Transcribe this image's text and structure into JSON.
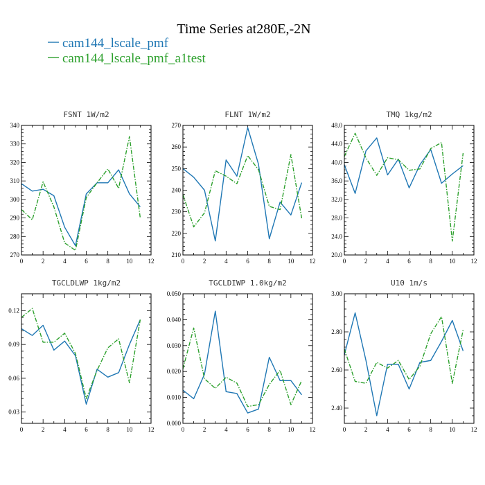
{
  "figure": {
    "title": "Time Series at280E,-2N",
    "legend": [
      {
        "name": "cam144_lscale_pmf",
        "color": "#1f77b4",
        "dash": "solid"
      },
      {
        "name": "cam144_lscale_pmf_a1test",
        "color": "#2ca02c",
        "dash": "dashdot"
      }
    ]
  },
  "chart_data": [
    {
      "type": "line",
      "title": "FSNT  1W/m2",
      "x": [
        0,
        1,
        2,
        3,
        4,
        5,
        6,
        7,
        8,
        9,
        10,
        11
      ],
      "xlim": [
        0,
        12
      ],
      "xticks": [
        0,
        2,
        4,
        6,
        8,
        10,
        12
      ],
      "xtick_labels": [
        "0",
        "2",
        "4",
        "6",
        "8",
        "10",
        "12"
      ],
      "ylim": [
        270,
        340
      ],
      "yticks": [
        270,
        280,
        290,
        300,
        310,
        320,
        330,
        340
      ],
      "ytick_labels": [
        "270",
        "280",
        "290",
        "300",
        "310",
        "320",
        "330",
        "340"
      ],
      "series": [
        {
          "name": "cam144_lscale_pmf",
          "values": [
            308.5,
            304.5,
            305.5,
            302,
            285,
            275,
            303,
            309,
            309,
            316,
            303,
            296
          ]
        },
        {
          "name": "cam144_lscale_pmf_a1test",
          "values": [
            294.5,
            289,
            309.5,
            296,
            276.5,
            272.5,
            301,
            309,
            316.5,
            306,
            334,
            290
          ]
        }
      ]
    },
    {
      "type": "line",
      "title": "FLNT  1W/m2",
      "x": [
        0,
        1,
        2,
        3,
        4,
        5,
        6,
        7,
        8,
        9,
        10,
        11
      ],
      "xlim": [
        0,
        12
      ],
      "xticks": [
        0,
        2,
        4,
        6,
        8,
        10,
        12
      ],
      "xtick_labels": [
        "0",
        "2",
        "4",
        "6",
        "8",
        "10",
        "12"
      ],
      "ylim": [
        210,
        270
      ],
      "yticks": [
        210,
        220,
        230,
        240,
        250,
        260,
        270
      ],
      "ytick_labels": [
        "210",
        "220",
        "230",
        "240",
        "250",
        "260",
        "270"
      ],
      "series": [
        {
          "name": "cam144_lscale_pmf",
          "values": [
            250,
            246,
            240,
            216.5,
            254,
            246.5,
            269,
            252,
            217.5,
            234.5,
            228.5,
            243.5
          ]
        },
        {
          "name": "cam144_lscale_pmf_a1test",
          "values": [
            238,
            223,
            229.5,
            249,
            246.5,
            243,
            256,
            249.5,
            232.5,
            231,
            256.5,
            227
          ]
        }
      ]
    },
    {
      "type": "line",
      "title": "TMQ  1kg/m2",
      "x": [
        0,
        1,
        2,
        3,
        4,
        5,
        6,
        7,
        8,
        9,
        10,
        11
      ],
      "xlim": [
        0,
        12
      ],
      "xticks": [
        0,
        2,
        4,
        6,
        8,
        10,
        12
      ],
      "xtick_labels": [
        "0",
        "2",
        "4",
        "6",
        "8",
        "10",
        "12"
      ],
      "ylim": [
        20,
        48
      ],
      "yticks": [
        20,
        24,
        28,
        32,
        36,
        40,
        44,
        48
      ],
      "ytick_labels": [
        "20.0",
        "24.0",
        "28.0",
        "32.0",
        "36.0",
        "40.0",
        "44.0",
        "48.0"
      ],
      "series": [
        {
          "name": "cam144_lscale_pmf",
          "values": [
            39.5,
            33.3,
            42.5,
            45.3,
            37.3,
            40.7,
            34.5,
            39.5,
            42.8,
            35.5,
            37.5,
            39.3
          ]
        },
        {
          "name": "cam144_lscale_pmf_a1test",
          "values": [
            41.3,
            46.3,
            41,
            37.2,
            41,
            40.6,
            38.3,
            38.6,
            43,
            44.3,
            23,
            42
          ]
        }
      ]
    },
    {
      "type": "line",
      "title": "TGCLDLWP  1kg/m2",
      "x": [
        0,
        1,
        2,
        3,
        4,
        5,
        6,
        7,
        8,
        9,
        10,
        11
      ],
      "xlim": [
        0,
        12
      ],
      "xticks": [
        0,
        2,
        4,
        6,
        8,
        10,
        12
      ],
      "xtick_labels": [
        "0",
        "2",
        "4",
        "6",
        "8",
        "10",
        "12"
      ],
      "ylim": [
        0.02,
        0.135
      ],
      "yticks": [
        0.03,
        0.06,
        0.09,
        0.12
      ],
      "ytick_labels": [
        "0.03",
        "0.06",
        "0.09",
        "0.12"
      ],
      "series": [
        {
          "name": "cam144_lscale_pmf",
          "values": [
            0.104,
            0.098,
            0.107,
            0.085,
            0.093,
            0.08,
            0.037,
            0.068,
            0.061,
            0.065,
            0.09,
            0.112
          ]
        },
        {
          "name": "cam144_lscale_pmf_a1test",
          "values": [
            0.114,
            0.122,
            0.092,
            0.092,
            0.1,
            0.082,
            0.042,
            0.067,
            0.087,
            0.095,
            0.056,
            0.112
          ]
        }
      ]
    },
    {
      "type": "line",
      "title": "TGCLDIWP  1.0kg/m2",
      "x": [
        0,
        1,
        2,
        3,
        4,
        5,
        6,
        7,
        8,
        9,
        10,
        11
      ],
      "xlim": [
        0,
        12
      ],
      "xticks": [
        0,
        2,
        4,
        6,
        8,
        10,
        12
      ],
      "xtick_labels": [
        "0",
        "2",
        "4",
        "6",
        "8",
        "10",
        "12"
      ],
      "ylim": [
        0,
        0.05
      ],
      "yticks": [
        0,
        0.01,
        0.02,
        0.03,
        0.04,
        0.05
      ],
      "ytick_labels": [
        "0.000",
        "0.010",
        "0.020",
        "0.030",
        "0.040",
        "0.050"
      ],
      "series": [
        {
          "name": "cam144_lscale_pmf",
          "values": [
            0.0128,
            0.0095,
            0.019,
            0.0433,
            0.0122,
            0.0115,
            0.004,
            0.0055,
            0.0255,
            0.0165,
            0.0165,
            0.011
          ]
        },
        {
          "name": "cam144_lscale_pmf_a1test",
          "values": [
            0.021,
            0.0368,
            0.0172,
            0.0135,
            0.0178,
            0.0155,
            0.0065,
            0.0072,
            0.015,
            0.0205,
            0.0072,
            0.0165
          ]
        }
      ]
    },
    {
      "type": "line",
      "title": "U10  1m/s",
      "x": [
        0,
        1,
        2,
        3,
        4,
        5,
        6,
        7,
        8,
        9,
        10,
        11
      ],
      "xlim": [
        0,
        12
      ],
      "xticks": [
        0,
        2,
        4,
        6,
        8,
        10,
        12
      ],
      "xtick_labels": [
        "0",
        "2",
        "4",
        "6",
        "8",
        "10",
        "12"
      ],
      "ylim": [
        2.32,
        3.0
      ],
      "yticks": [
        2.4,
        2.6,
        2.8,
        3.0
      ],
      "ytick_labels": [
        "2.40",
        "2.60",
        "2.80",
        "3.00"
      ],
      "series": [
        {
          "name": "cam144_lscale_pmf",
          "values": [
            2.68,
            2.9,
            2.65,
            2.36,
            2.63,
            2.63,
            2.5,
            2.64,
            2.65,
            2.75,
            2.86,
            2.7
          ]
        },
        {
          "name": "cam144_lscale_pmf_a1test",
          "values": [
            2.71,
            2.54,
            2.53,
            2.64,
            2.61,
            2.65,
            2.55,
            2.62,
            2.79,
            2.88,
            2.53,
            2.81
          ]
        }
      ]
    }
  ]
}
